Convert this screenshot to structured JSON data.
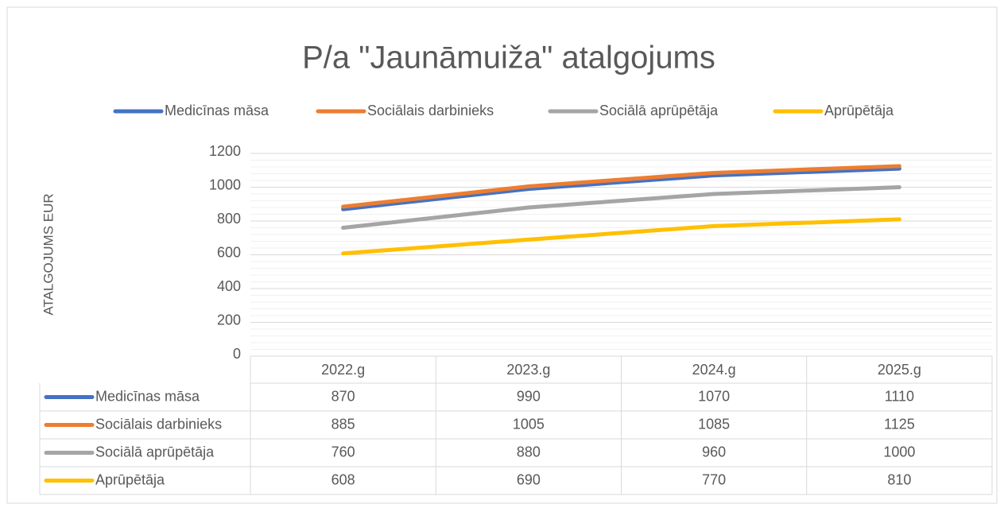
{
  "chart_data": {
    "type": "line",
    "title": "P/a \"Jaunāmuiža\" atalgojums",
    "y_label": "ATALGOJUMS EUR",
    "categories": [
      "2022.g",
      "2023.g",
      "2024.g",
      "2025.g"
    ],
    "series": [
      {
        "name": "Medicīnas māsa",
        "color": "#4472c4",
        "values": [
          870,
          990,
          1070,
          1110
        ]
      },
      {
        "name": "Sociālais darbinieks",
        "color": "#ed7d31",
        "values": [
          885,
          1005,
          1085,
          1125
        ]
      },
      {
        "name": "Sociālā aprūpētāja",
        "color": "#a5a5a5",
        "values": [
          760,
          880,
          960,
          1000
        ]
      },
      {
        "name": "Aprūpētāja",
        "color": "#ffc000",
        "values": [
          608,
          690,
          770,
          810
        ]
      }
    ],
    "ylim": [
      0,
      1200
    ],
    "yticks": [
      0,
      200,
      400,
      600,
      800,
      1000,
      1200
    ],
    "grid": true,
    "legend": "top",
    "data_table": true
  }
}
